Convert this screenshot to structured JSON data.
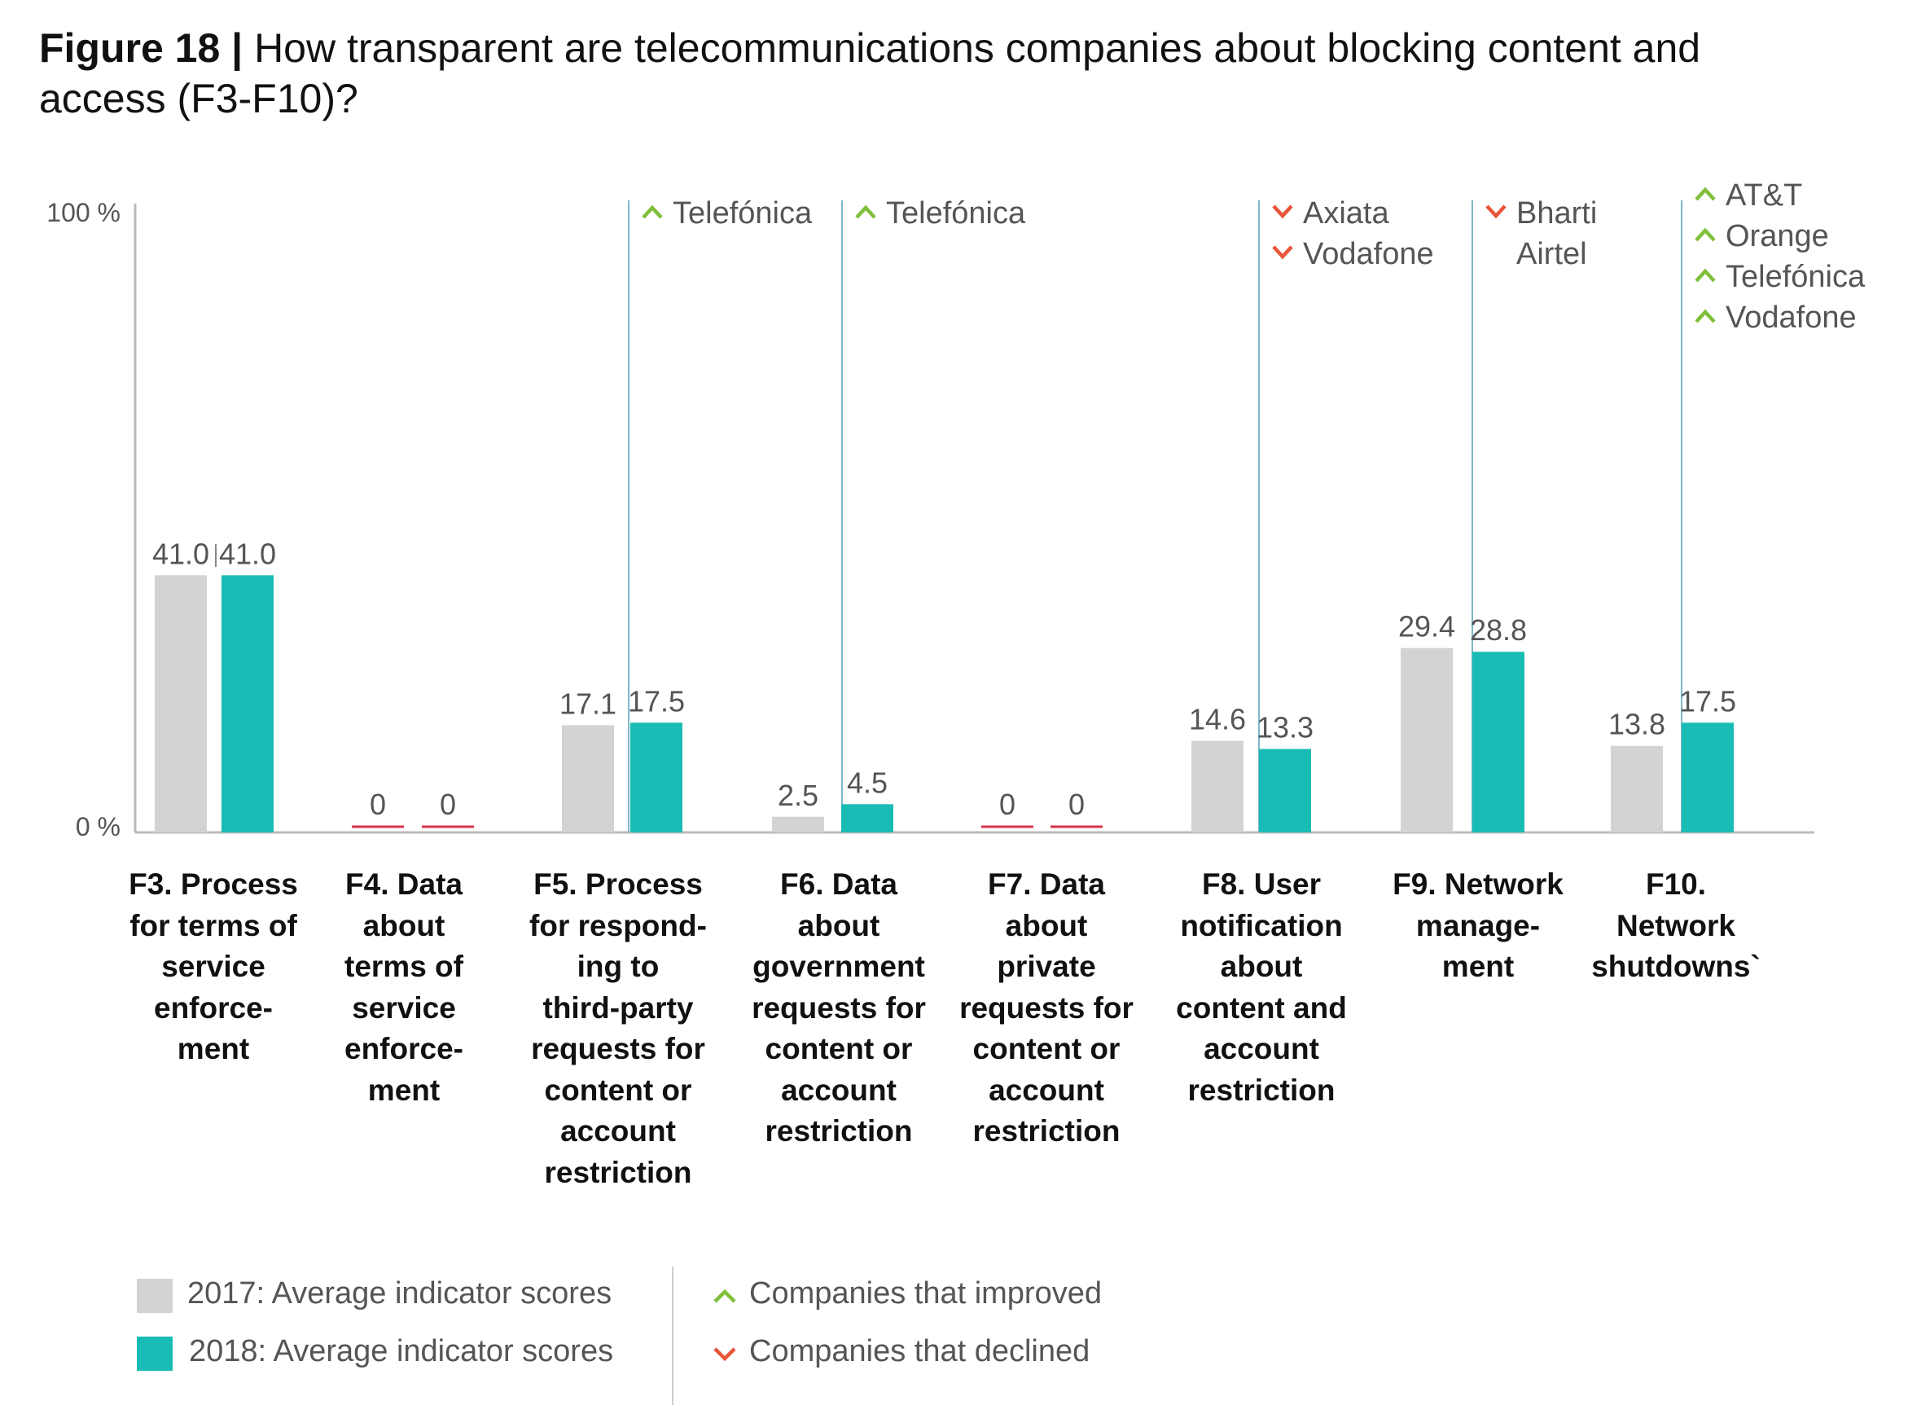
{
  "title": {
    "prefix": "Figure 18 |",
    "text": " How transparent are telecommunications companies about blocking content and access (F3-F10)?"
  },
  "colors": {
    "2017": "#d3d3d3",
    "2018": "#19bcb4",
    "zero_line": "#d9324a",
    "improved": "#7fbf3a",
    "declined": "#e8553a",
    "marker_line": "#7fb8c8",
    "axis": "#bbbbbb"
  },
  "chart_data": {
    "type": "bar",
    "ylim": [
      0,
      100
    ],
    "y_ticks": [
      "0 %",
      "100 %"
    ],
    "categories": [
      "F3. Process for terms of service enforce-ment",
      "F4. Data about terms of service enforce-ment",
      "F5. Process for respond-ing to third-party requests for content or account restriction",
      "F6. Data about government requests for content or account restriction",
      "F7. Data about private requests for content or account restriction",
      "F8. User notification about content and account restriction",
      "F9. Network manage-ment",
      "F10. Network shutdowns`"
    ],
    "category_lines": [
      [
        "F3. Process",
        "for terms of",
        "service",
        "enforce-",
        "ment"
      ],
      [
        "F4. Data",
        "about",
        "terms of",
        "service",
        "enforce-",
        "ment"
      ],
      [
        "F5. Process",
        "for respond-",
        "ing to",
        "third-party",
        "requests for",
        "content or",
        "account",
        "restriction"
      ],
      [
        "F6. Data",
        "about",
        "government",
        "requests for",
        "content or",
        "account",
        "restriction"
      ],
      [
        "F7. Data",
        "about",
        "private",
        "requests for",
        "content or",
        "account",
        "restriction"
      ],
      [
        "F8. User",
        "notification",
        "about",
        "content and",
        "account",
        "restriction"
      ],
      [
        "F9. Network",
        "manage-",
        "ment"
      ],
      [
        "F10.",
        "Network",
        "shutdowns`"
      ]
    ],
    "series": [
      {
        "name": "2017: Average indicator scores",
        "values": [
          41.0,
          0,
          17.1,
          2.5,
          0,
          14.6,
          29.4,
          13.8
        ],
        "labels": [
          "41.0",
          "0",
          "17.1",
          "2.5",
          "0",
          "14.6",
          "29.4",
          "13.8"
        ]
      },
      {
        "name": "2018: Average indicator scores",
        "values": [
          41.0,
          0,
          17.5,
          4.5,
          0,
          13.3,
          28.8,
          17.5
        ],
        "labels": [
          "41.0",
          "0",
          "17.5",
          "4.5",
          "0",
          "13.3",
          "28.8",
          "17.5"
        ]
      }
    ],
    "company_changes": [
      {
        "category": 2,
        "direction": "improved",
        "companies": [
          "Telefónica"
        ]
      },
      {
        "category": 3,
        "direction": "improved",
        "companies": [
          "Telefónica"
        ]
      },
      {
        "category": 5,
        "direction": "declined",
        "companies": [
          "Axiata",
          "Vodafone"
        ]
      },
      {
        "category": 6,
        "direction": "declined",
        "companies": [
          "Bharti",
          "Airtel"
        ]
      },
      {
        "category": 7,
        "direction": "improved",
        "companies": [
          "AT&T",
          "Orange",
          "Telefónica",
          "Vodafone"
        ]
      }
    ],
    "legend": {
      "series_2017": "2017: Average indicator scores",
      "series_2018": "2018: Average indicator scores",
      "improved": "Companies that improved",
      "declined": "Companies that declined",
      "position": "bottom"
    }
  }
}
